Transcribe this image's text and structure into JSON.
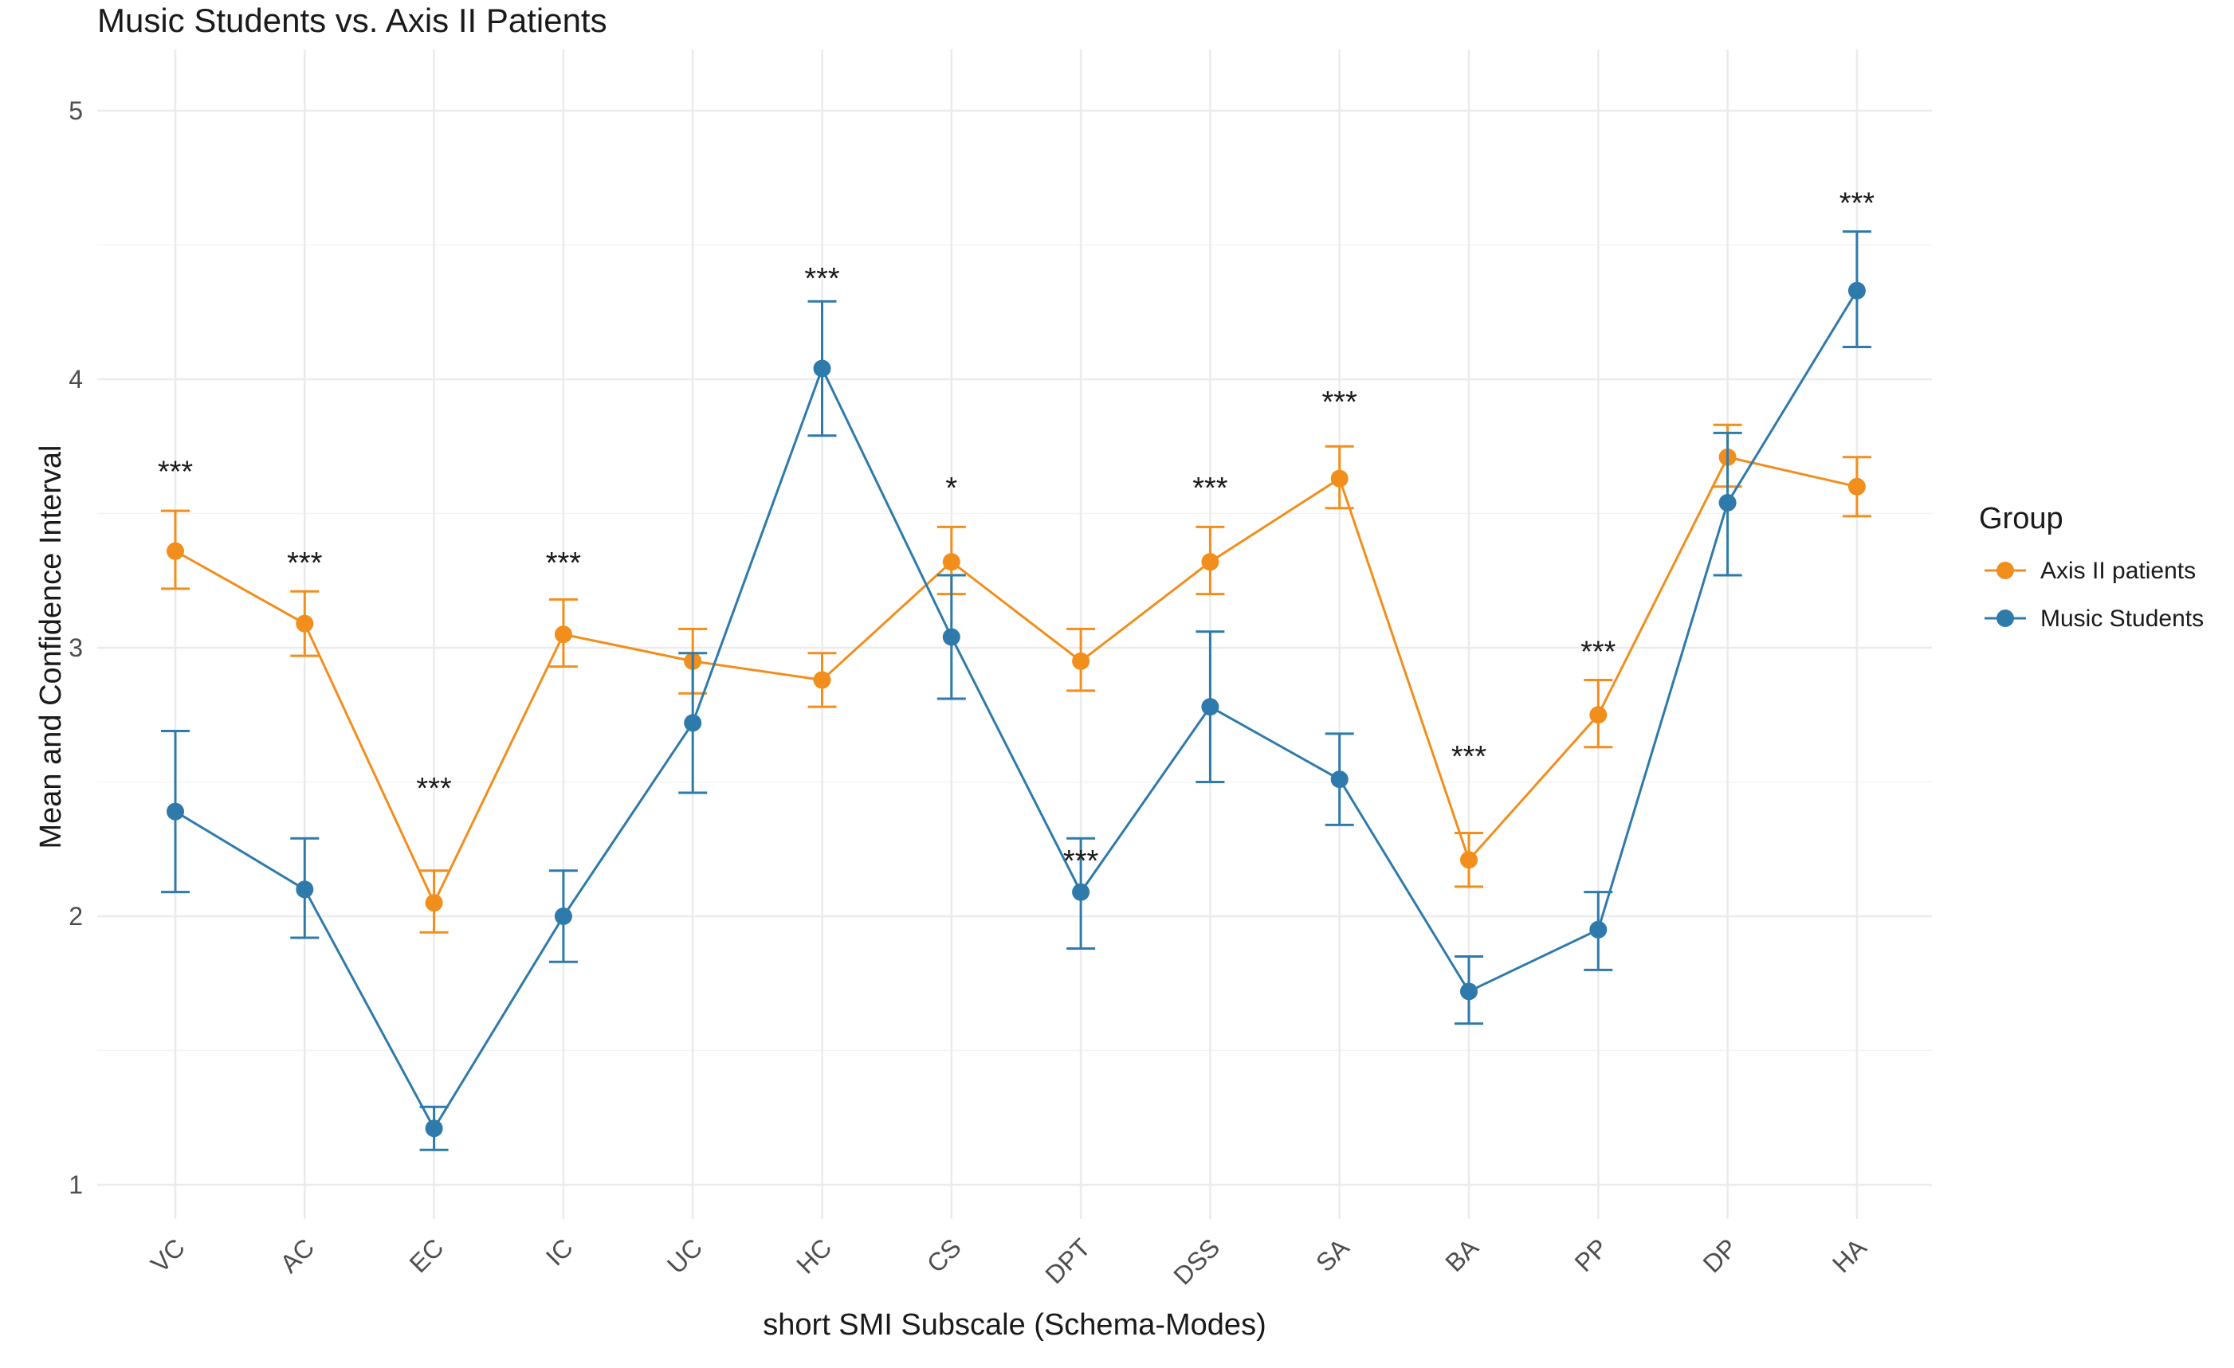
{
  "chart_data": {
    "type": "line",
    "title": "Music Students vs. Axis II Patients",
    "xlabel": "short SMI Subscale (Schema-Modes)",
    "ylabel": "Mean and Confidence Interval",
    "ylim": [
      0.95,
      5.2
    ],
    "yticks": [
      1,
      2,
      3,
      4,
      5
    ],
    "grid": true,
    "legend": {
      "title": "Group",
      "position": "right"
    },
    "categories": [
      "VC",
      "AC",
      "EC",
      "IC",
      "UC",
      "HC",
      "CS",
      "DPT",
      "DSS",
      "SA",
      "BA",
      "PP",
      "DP",
      "HA"
    ],
    "series": [
      {
        "name": "Axis II patients",
        "color": "#f28e1c",
        "values": [
          3.36,
          3.09,
          2.05,
          3.05,
          2.95,
          2.88,
          3.32,
          2.95,
          3.32,
          3.63,
          2.21,
          2.75,
          3.71,
          3.6
        ],
        "ci_low": [
          3.22,
          2.97,
          1.94,
          2.93,
          2.83,
          2.78,
          3.2,
          2.84,
          3.2,
          3.52,
          2.11,
          2.63,
          3.6,
          3.49
        ],
        "ci_high": [
          3.51,
          3.21,
          2.17,
          3.18,
          3.07,
          2.98,
          3.45,
          3.07,
          3.45,
          3.75,
          2.31,
          2.88,
          3.83,
          3.71
        ]
      },
      {
        "name": "Music Students",
        "color": "#2e7aab",
        "values": [
          2.39,
          2.1,
          1.21,
          2.0,
          2.72,
          4.04,
          3.04,
          2.09,
          2.78,
          2.51,
          1.72,
          1.95,
          3.54,
          4.33
        ],
        "ci_low": [
          2.09,
          1.92,
          1.13,
          1.83,
          2.46,
          3.79,
          2.81,
          1.88,
          2.5,
          2.34,
          1.6,
          1.8,
          3.27,
          4.12
        ],
        "ci_high": [
          2.69,
          2.29,
          1.29,
          2.17,
          2.98,
          4.29,
          3.27,
          2.29,
          3.06,
          2.68,
          1.85,
          2.09,
          3.8,
          4.55
        ]
      }
    ],
    "significance": [
      "***",
      "***",
      "***",
      "***",
      "",
      "***",
      "*",
      "***",
      "***",
      "***",
      "***",
      "***",
      "",
      "***"
    ],
    "significance_y": [
      3.66,
      3.32,
      2.48,
      3.32,
      null,
      4.38,
      3.6,
      2.21,
      3.6,
      3.92,
      2.6,
      2.99,
      null,
      4.66
    ]
  }
}
